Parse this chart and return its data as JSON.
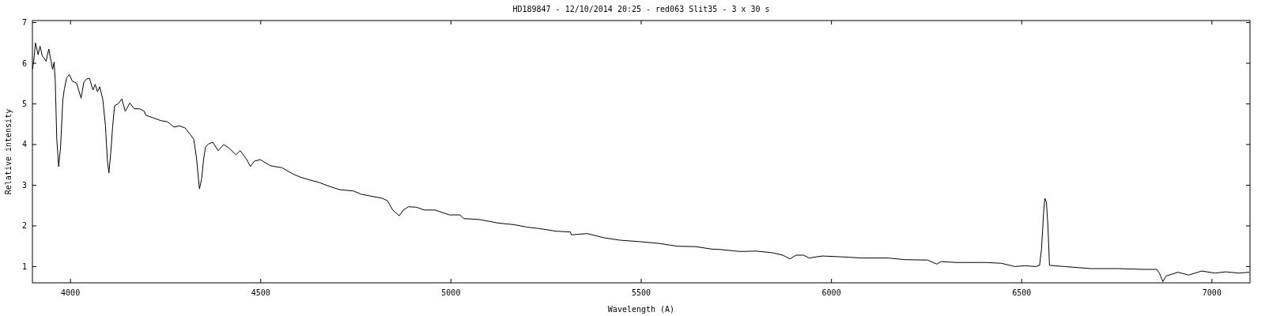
{
  "chart_data": {
    "type": "line",
    "title": "HD189847 - 12/10/2014 20:25 - red063 Slit35 - 3 x 30 s",
    "xlabel": "Wavelength (A)",
    "ylabel": "Relative intensity",
    "xlim": [
      3900,
      7100
    ],
    "xticks": [
      4000,
      4500,
      5000,
      5500,
      6000,
      6500,
      7000
    ],
    "ylim": [
      0.6,
      7.05
    ],
    "yticks": [
      1,
      2,
      3,
      4,
      5,
      6,
      7
    ],
    "grid": false,
    "series": [
      {
        "color": "#000000",
        "x": [
          3900,
          3903,
          3908,
          3915,
          3920,
          3926,
          3936,
          3943,
          3949,
          3953,
          3957,
          3960,
          3964,
          3969,
          3974,
          3980,
          3984,
          3990,
          3997,
          4005,
          4016,
          4028,
          4035,
          4042,
          4050,
          4059,
          4065,
          4071,
          4077,
          4085,
          4092,
          4097,
          4101,
          4106,
          4111,
          4116,
          4126,
          4135,
          4144,
          4156,
          4168,
          4182,
          4194,
          4198,
          4217,
          4237,
          4255,
          4272,
          4286,
          4301,
          4313,
          4324,
          4331,
          4339,
          4345,
          4350,
          4355,
          4362,
          4374,
          4388,
          4403,
          4417,
          4435,
          4446,
          4462,
          4473,
          4483,
          4499,
          4525,
          4556,
          4584,
          4604,
          4625,
          4653,
          4681,
          4708,
          4743,
          4764,
          4791,
          4819,
          4833,
          4847,
          4864,
          4875,
          4888,
          4909,
          4930,
          4958,
          4996,
          5024,
          5033,
          5072,
          5124,
          5166,
          5200,
          5235,
          5276,
          5314,
          5316,
          5359,
          5401,
          5443,
          5498,
          5546,
          5595,
          5643,
          5685,
          5706,
          5761,
          5803,
          5844,
          5872,
          5891,
          5907,
          5927,
          5941,
          5976,
          6024,
          6080,
          6149,
          6191,
          6253,
          6277,
          6288,
          6329,
          6391,
          6405,
          6447,
          6482,
          6509,
          6537,
          6547,
          6552,
          6558,
          6561,
          6565,
          6569,
          6573,
          6613,
          6682,
          6752,
          6821,
          6855,
          6862,
          6871,
          6880,
          6911,
          6939,
          6973,
          7008,
          7036,
          7070,
          7098
        ],
        "values": [
          5.85,
          6.01,
          6.5,
          6.21,
          6.42,
          6.18,
          6.05,
          6.35,
          6.05,
          5.85,
          6.03,
          5.56,
          4.14,
          3.46,
          3.94,
          5.11,
          5.37,
          5.64,
          5.72,
          5.56,
          5.51,
          5.14,
          5.53,
          5.61,
          5.63,
          5.34,
          5.48,
          5.3,
          5.42,
          5.11,
          4.46,
          3.62,
          3.3,
          3.81,
          4.46,
          4.95,
          5.01,
          5.12,
          4.82,
          5.02,
          4.88,
          4.88,
          4.82,
          4.72,
          4.66,
          4.59,
          4.56,
          4.43,
          4.46,
          4.41,
          4.27,
          4.13,
          3.69,
          2.91,
          3.17,
          3.65,
          3.94,
          4.01,
          4.06,
          3.85,
          4.0,
          3.91,
          3.75,
          3.85,
          3.65,
          3.46,
          3.59,
          3.63,
          3.48,
          3.43,
          3.28,
          3.2,
          3.14,
          3.07,
          2.97,
          2.89,
          2.86,
          2.78,
          2.73,
          2.68,
          2.62,
          2.39,
          2.25,
          2.39,
          2.47,
          2.46,
          2.39,
          2.39,
          2.27,
          2.27,
          2.18,
          2.16,
          2.07,
          2.03,
          1.97,
          1.93,
          1.87,
          1.85,
          1.78,
          1.81,
          1.71,
          1.65,
          1.61,
          1.57,
          1.5,
          1.49,
          1.43,
          1.42,
          1.37,
          1.38,
          1.34,
          1.28,
          1.19,
          1.28,
          1.28,
          1.21,
          1.26,
          1.24,
          1.21,
          1.21,
          1.17,
          1.16,
          1.06,
          1.12,
          1.1,
          1.1,
          1.1,
          1.08,
          1.0,
          1.02,
          1.0,
          1.03,
          1.42,
          2.39,
          2.68,
          2.58,
          2.0,
          1.03,
          1.0,
          0.95,
          0.95,
          0.93,
          0.93,
          0.84,
          0.63,
          0.77,
          0.86,
          0.79,
          0.89,
          0.84,
          0.87,
          0.84,
          0.86
        ]
      }
    ]
  }
}
